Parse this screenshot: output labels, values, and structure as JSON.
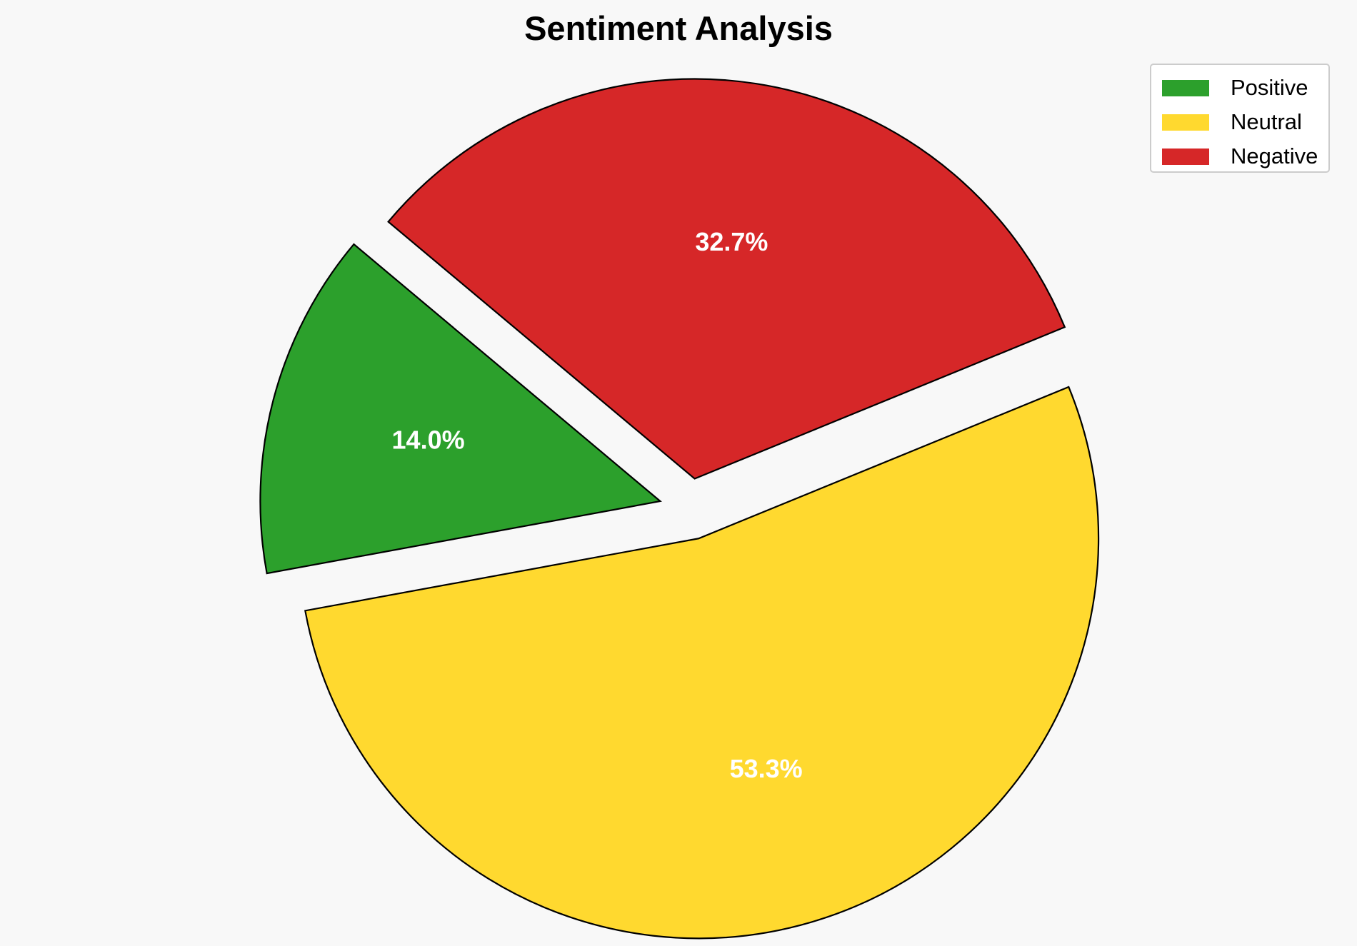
{
  "chart_data": {
    "type": "pie",
    "title": "Sentiment Analysis",
    "categories": [
      "Positive",
      "Neutral",
      "Negative"
    ],
    "values": [
      14.0,
      53.3,
      32.7
    ],
    "value_labels": [
      "14.0%",
      "53.3%",
      "32.7%"
    ],
    "colors": [
      "#2ca02c",
      "#ffd92f",
      "#d62728"
    ],
    "exploded": true,
    "legend_position": "top-right"
  }
}
